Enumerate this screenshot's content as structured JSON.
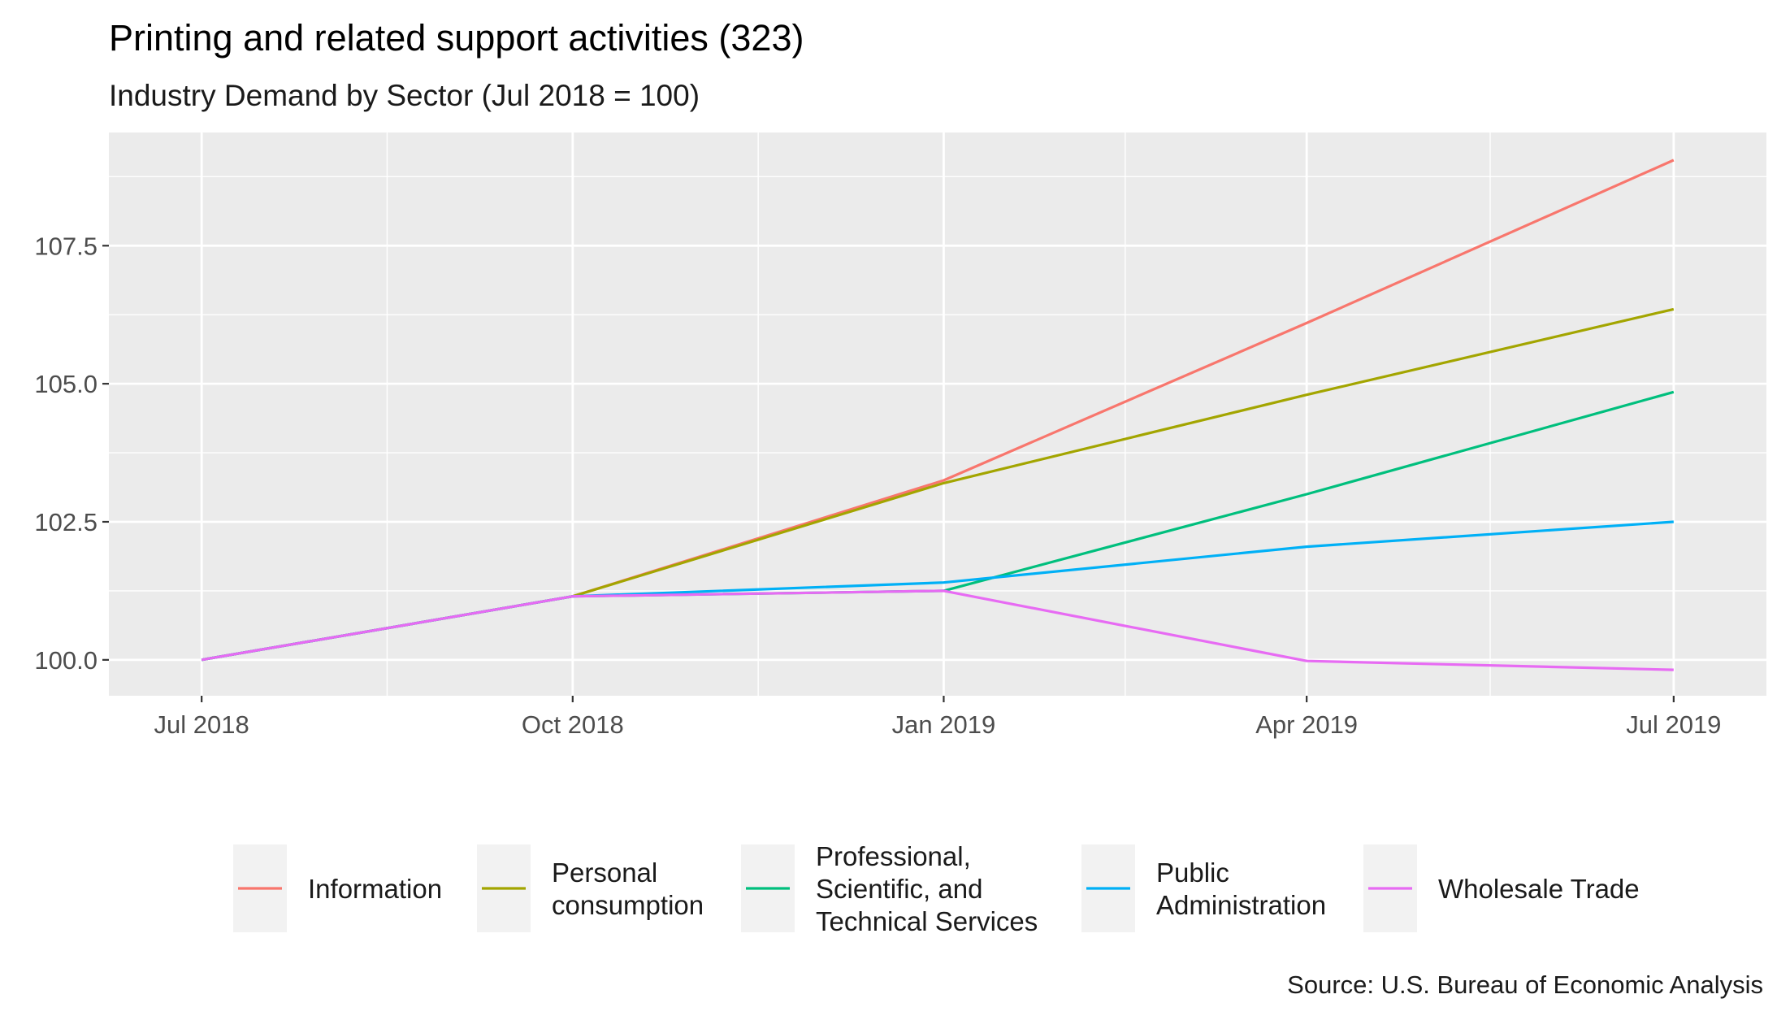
{
  "chart_data": {
    "type": "line",
    "title": "Printing and related support activities (323)",
    "subtitle": "Industry Demand by Sector (Jul 2018 = 100)",
    "caption": "Source: U.S. Bureau of Economic Analysis",
    "xlabel": "",
    "ylabel": "",
    "x": [
      "Jul 2018",
      "Oct 2018",
      "Jan 2019",
      "Apr 2019",
      "Jul 2019"
    ],
    "x_days": [
      0,
      92,
      184,
      274,
      365
    ],
    "y_ticks": [
      "100.0",
      "102.5",
      "105.0",
      "107.5"
    ],
    "y_tick_values": [
      100.0,
      102.5,
      105.0,
      107.5
    ],
    "ylim": [
      99.35,
      109.55
    ],
    "grid": true,
    "legend_position": "bottom",
    "series": [
      {
        "name": "Information",
        "color": "#F8766D",
        "values": [
          100.0,
          101.15,
          103.25,
          106.1,
          109.05
        ]
      },
      {
        "name": "Personal consumption",
        "color": "#A3A500",
        "values": [
          100.0,
          101.15,
          103.2,
          104.8,
          106.35
        ]
      },
      {
        "name": "Professional, Scientific, and Technical Services",
        "color": "#00BF7D",
        "values": [
          100.0,
          101.15,
          101.25,
          103.0,
          104.85
        ]
      },
      {
        "name": "Public Administration",
        "color": "#00B0F6",
        "values": [
          100.0,
          101.15,
          101.4,
          102.05,
          102.5
        ]
      },
      {
        "name": "Wholesale Trade",
        "color": "#E76BF3",
        "values": [
          100.0,
          101.15,
          101.25,
          99.98,
          99.82
        ]
      }
    ],
    "legend_lines": [
      [
        "Information"
      ],
      [
        "Personal",
        "consumption"
      ],
      [
        "Professional,",
        "Scientific, and",
        "Technical Services"
      ],
      [
        "Public",
        "Administration"
      ],
      [
        "Wholesale Trade"
      ]
    ]
  }
}
